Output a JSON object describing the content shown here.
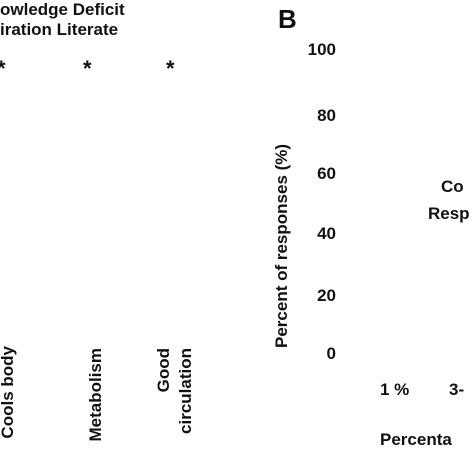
{
  "chart_data": [
    {
      "type": "bar",
      "panel": "A",
      "legend": [
        "owledge Deficit",
        "iration Literate"
      ],
      "significance_marker": "*",
      "categories": [
        "Cools body",
        "Metabolism",
        "Good circulation"
      ],
      "category_lines": [
        [
          "Cools body"
        ],
        [
          "Metabolism"
        ],
        [
          "Good",
          "circulation"
        ]
      ],
      "series": []
    },
    {
      "type": "bar",
      "panel": "B",
      "ylabel": "Percent of responses (%)",
      "ylim": [
        0,
        100
      ],
      "yticks": [
        0,
        20,
        40,
        60,
        80,
        100
      ],
      "categories": [
        "1 %",
        "3-"
      ],
      "xlabel": "Percenta",
      "inner_text": [
        "Co",
        "Resp"
      ],
      "series": []
    }
  ],
  "colors": {
    "text": "#111111",
    "background": "#ffffff"
  }
}
